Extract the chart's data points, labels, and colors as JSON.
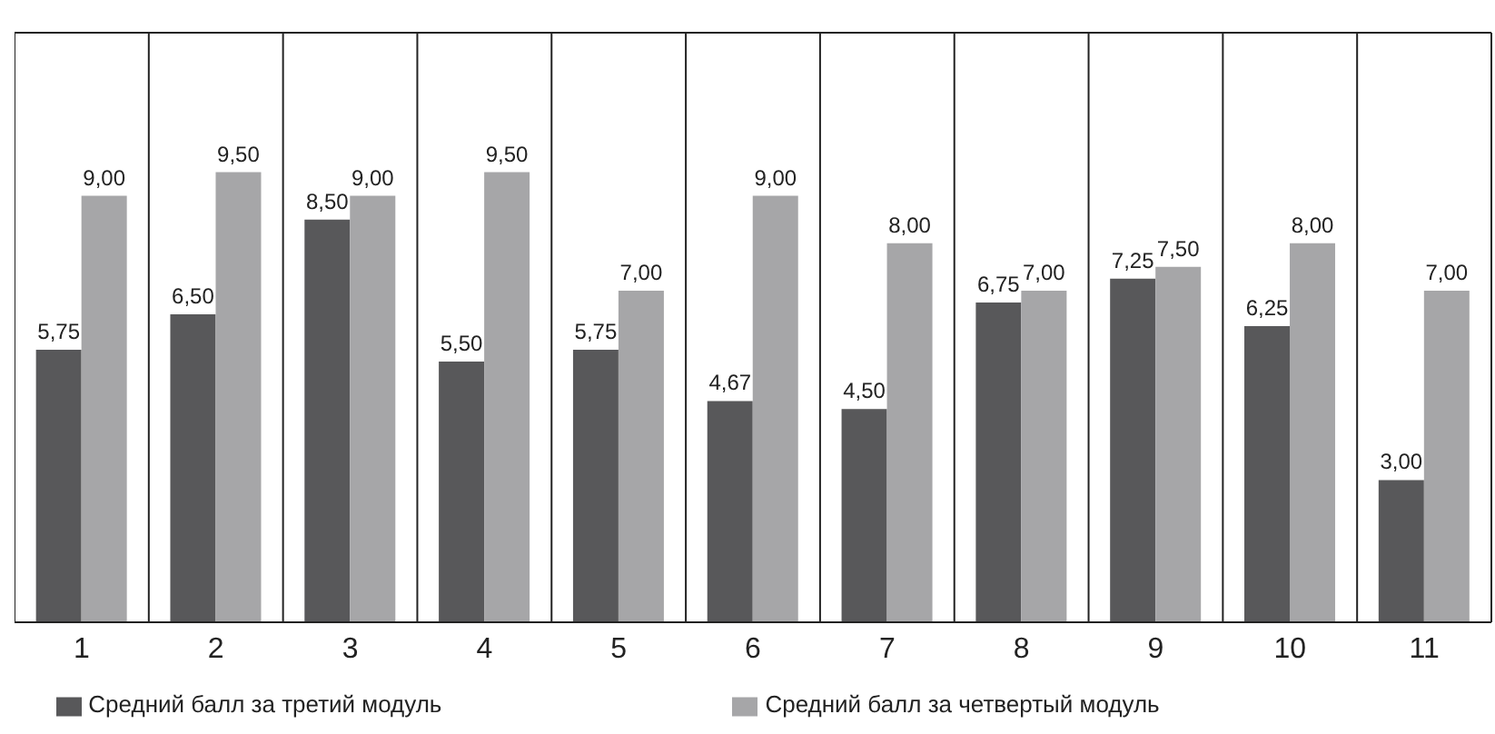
{
  "chart_data": {
    "type": "bar",
    "categories": [
      "1",
      "2",
      "3",
      "4",
      "5",
      "6",
      "7",
      "8",
      "9",
      "10",
      "11"
    ],
    "series": [
      {
        "name": "Средний балл за третий модуль",
        "color": "#58585a",
        "values": [
          5.75,
          6.5,
          8.5,
          5.5,
          5.75,
          4.67,
          4.5,
          6.75,
          7.25,
          6.25,
          3.0
        ],
        "value_labels": [
          "5,75",
          "6,50",
          "8,50",
          "5,50",
          "5,75",
          "4,67",
          "4,50",
          "6,75",
          "7,25",
          "6,25",
          "3,00"
        ]
      },
      {
        "name": "Средний балл за четвертый модуль",
        "color": "#a6a6a8",
        "values": [
          9.0,
          9.5,
          9.0,
          9.5,
          7.0,
          9.0,
          8.0,
          7.0,
          7.5,
          8.0,
          7.0
        ],
        "value_labels": [
          "9,00",
          "9,50",
          "9,00",
          "9,50",
          "7,00",
          "9,00",
          "8,00",
          "7,00",
          "7,50",
          "8,00",
          "7,00"
        ]
      }
    ],
    "grid": "x",
    "legend": "bottom"
  }
}
